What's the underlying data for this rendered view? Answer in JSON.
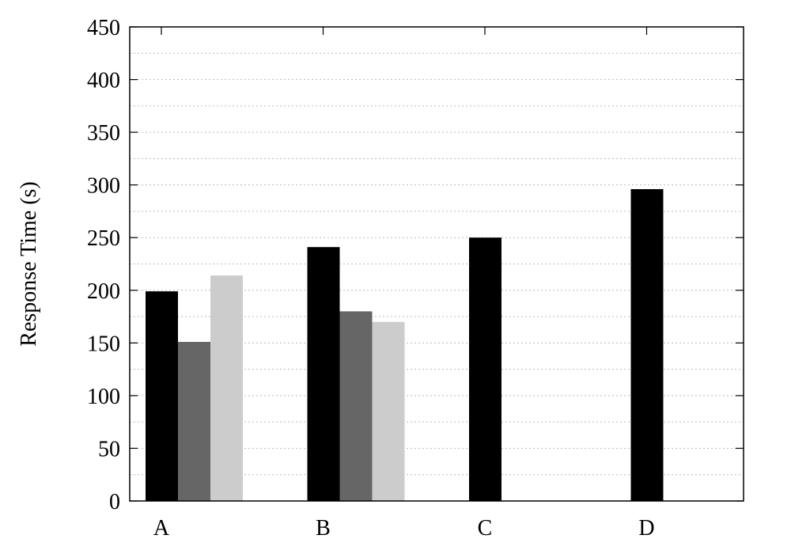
{
  "chart_data": {
    "type": "bar",
    "title": "",
    "xlabel": "",
    "ylabel": "Response Time (s)",
    "ylim": [
      0,
      450
    ],
    "yticks": [
      0,
      50,
      100,
      150,
      200,
      250,
      300,
      350,
      400,
      450
    ],
    "ytick_labels": [
      "0",
      "50",
      "100",
      "150",
      "200",
      "250",
      "300",
      "350",
      "400",
      "450"
    ],
    "minor_grid_step": 25,
    "grid": "horizontal dotted",
    "legend": "none",
    "categories": [
      "A",
      "B",
      "C",
      "D"
    ],
    "series": [
      {
        "color": "#000000",
        "values": [
          199,
          241,
          250,
          296
        ]
      },
      {
        "color": "#666666",
        "values": [
          151,
          180,
          null,
          null
        ]
      },
      {
        "color": "#cccccc",
        "values": [
          214,
          170,
          null,
          null
        ]
      }
    ]
  }
}
